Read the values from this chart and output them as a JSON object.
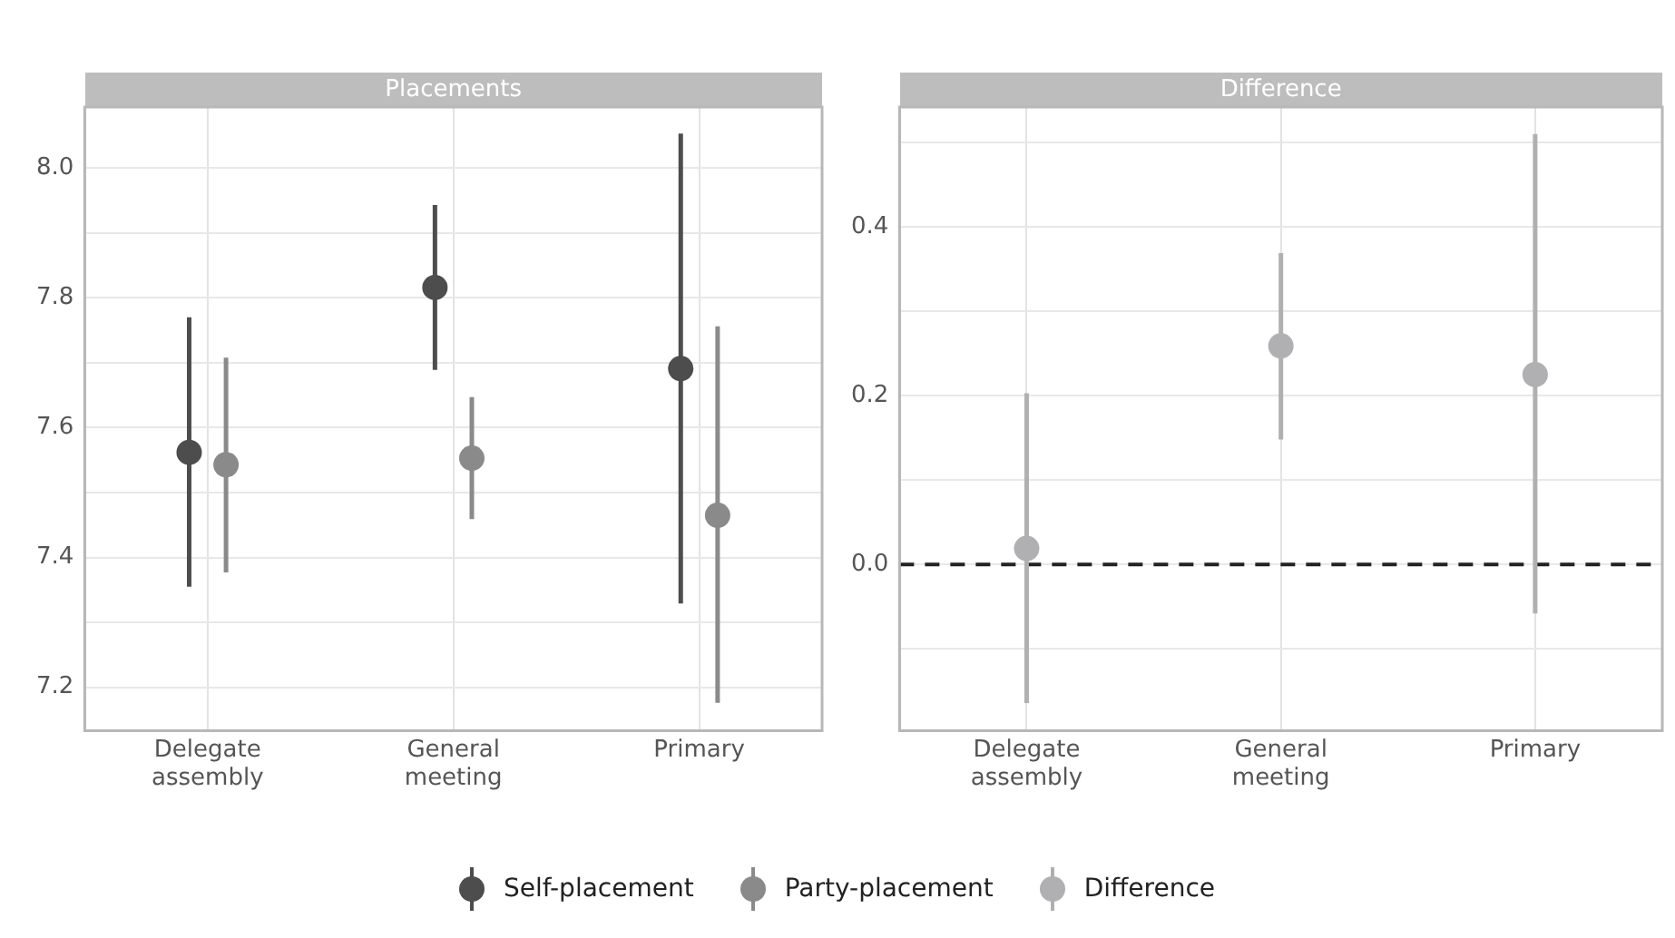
{
  "chart_data": [
    {
      "type": "scatter",
      "title": "Placements",
      "categories": [
        "Delegate assembly",
        "General meeting",
        "Primary"
      ],
      "ylim": [
        7.133,
        8.094
      ],
      "yticks": [
        {
          "value": 7.2,
          "label": "7.2"
        },
        {
          "value": 7.3,
          "label": null
        },
        {
          "value": 7.4,
          "label": "7.4"
        },
        {
          "value": 7.5,
          "label": null
        },
        {
          "value": 7.6,
          "label": "7.6"
        },
        {
          "value": 7.7,
          "label": null
        },
        {
          "value": 7.8,
          "label": "7.8"
        },
        {
          "value": 7.9,
          "label": null
        },
        {
          "value": 8.0,
          "label": "8.0"
        }
      ],
      "grid": true,
      "legend": "bottom",
      "marker": "circle",
      "series": [
        {
          "name": "Self-placement",
          "color": "#4d4d4d",
          "values": [
            7.562,
            7.816,
            7.691
          ],
          "errors": [
            [
              7.355,
              7.77
            ],
            [
              7.689,
              7.943
            ],
            [
              7.329,
              8.053
            ]
          ]
        },
        {
          "name": "Party-placement",
          "color": "#8a8a8a",
          "values": [
            7.543,
            7.553,
            7.465
          ],
          "errors": [
            [
              7.377,
              7.708
            ],
            [
              7.459,
              7.647
            ],
            [
              7.176,
              7.756
            ]
          ]
        }
      ]
    },
    {
      "type": "scatter",
      "title": "Difference",
      "categories": [
        "Delegate assembly",
        "General meeting",
        "Primary"
      ],
      "ylim": [
        -0.197,
        0.542
      ],
      "yticks": [
        {
          "value": -0.1,
          "label": null
        },
        {
          "value": 0.0,
          "label": "0.0"
        },
        {
          "value": 0.1,
          "label": null
        },
        {
          "value": 0.2,
          "label": "0.2"
        },
        {
          "value": 0.3,
          "label": null
        },
        {
          "value": 0.4,
          "label": "0.4"
        },
        {
          "value": 0.5,
          "label": null
        }
      ],
      "grid": true,
      "legend": "bottom",
      "marker": "circle",
      "ref_lines": [
        {
          "axis": "y",
          "value": 0,
          "color": "#222222",
          "line_style": "dashed"
        }
      ],
      "series": [
        {
          "name": "Difference",
          "color": "#b0b0b2",
          "values": [
            0.019,
            0.259,
            0.225
          ],
          "errors": [
            [
              -0.164,
              0.203
            ],
            [
              0.148,
              0.369
            ],
            [
              -0.058,
              0.51
            ]
          ]
        }
      ]
    }
  ]
}
